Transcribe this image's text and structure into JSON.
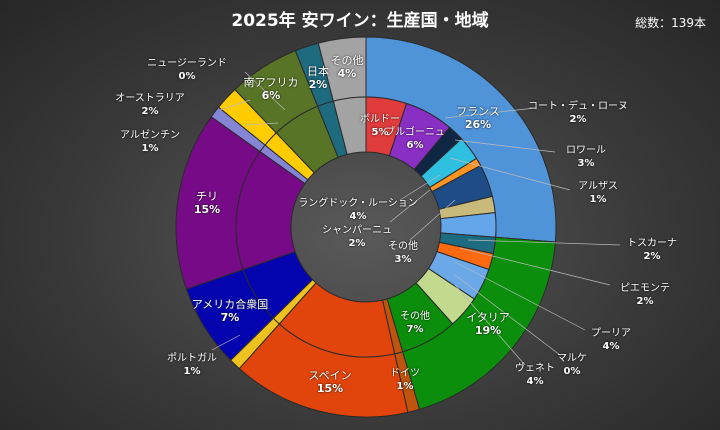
{
  "title": "2025年 安ワイン：生産国・地域",
  "total": "総数：139本",
  "chart_data": {
    "type": "sunburst",
    "title": "2025年 安ワイン：生産国・地域",
    "unit": "%",
    "countries": [
      {
        "name": "フランス",
        "value": 26,
        "label": "26%",
        "color": "#4f93d8",
        "children": [
          {
            "name": "ボルドー",
            "value": 5,
            "label": "5%",
            "color": "#e03c3c"
          },
          {
            "name": "ブルゴーニュ",
            "value": 6,
            "label": "6%",
            "color": "#8a2fc4"
          },
          {
            "name": "コート・デュ・ローヌ",
            "value": 2,
            "label": "2%",
            "color": "#0f2744"
          },
          {
            "name": "ロワール",
            "value": 3,
            "label": "3%",
            "color": "#2fbfe0"
          },
          {
            "name": "アルザス",
            "value": 1,
            "label": "1%",
            "color": "#ff9422"
          },
          {
            "name": "ラングドック・ルーション",
            "value": 4,
            "label": "4%",
            "color": "#1e4c86"
          },
          {
            "name": "シャンパーニュ",
            "value": 2,
            "label": "2%",
            "color": "#c9b97a"
          },
          {
            "name": "その他",
            "value": 3,
            "label": "3%",
            "color": "#63a7ea"
          }
        ]
      },
      {
        "name": "イタリア",
        "value": 19,
        "label": "19%",
        "color": "#0b8e0b",
        "children": [
          {
            "name": "トスカーナ",
            "value": 2,
            "label": "2%",
            "color": "#1c6b80"
          },
          {
            "name": "ピエモンテ",
            "value": 2,
            "label": "2%",
            "color": "#ff6a10"
          },
          {
            "name": "プーリア",
            "value": 4,
            "label": "4%",
            "color": "#6aa8e8"
          },
          {
            "name": "マルケ",
            "value": 0,
            "label": "0%",
            "color": "#9cc0e0"
          },
          {
            "name": "ヴェネト",
            "value": 4,
            "label": "4%",
            "color": "#c2d98e"
          },
          {
            "name": "その他",
            "value": 7,
            "label": "7%",
            "color": "#0b8e0b"
          }
        ]
      },
      {
        "name": "ドイツ",
        "value": 1,
        "label": "1%",
        "color": "#c0540f"
      },
      {
        "name": "スペイン",
        "value": 15,
        "label": "15%",
        "color": "#e2450c"
      },
      {
        "name": "ポルトガル",
        "value": 1,
        "label": "1%",
        "color": "#eec21e"
      },
      {
        "name": "アメリカ合衆国",
        "value": 7,
        "label": "7%",
        "color": "#0505b0"
      },
      {
        "name": "チリ",
        "value": 15,
        "label": "15%",
        "color": "#770a86"
      },
      {
        "name": "アルゼンチン",
        "value": 1,
        "label": "1%",
        "color": "#8585d5"
      },
      {
        "name": "オーストラリア",
        "value": 2,
        "label": "2%",
        "color": "#ffcc00"
      },
      {
        "name": "ニュージーランド",
        "value": 0,
        "label": "0%",
        "color": "#b8b8e0"
      },
      {
        "name": "南アフリカ",
        "value": 6,
        "label": "6%",
        "color": "#587426"
      },
      {
        "name": "日本",
        "value": 2,
        "label": "2%",
        "color": "#1e6b80"
      },
      {
        "name": "その他",
        "value": 4,
        "label": "4%",
        "color": "#a3a3a3"
      }
    ]
  }
}
